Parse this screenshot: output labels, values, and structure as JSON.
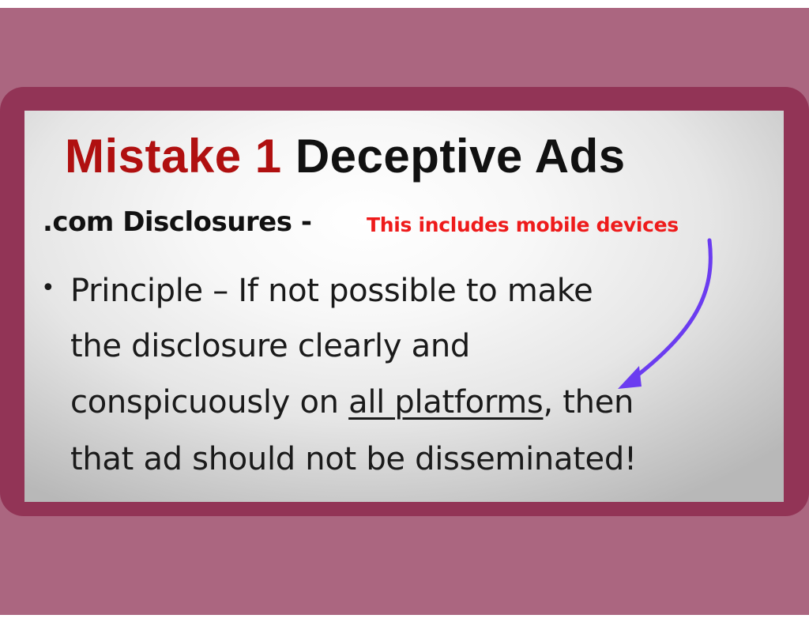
{
  "slide": {
    "title_red": "Mistake 1",
    "title_black": "Deceptive Ads",
    "subtitle": ".com Disclosures -",
    "annotation": "This includes mobile devices",
    "bullet_symbol": "•",
    "bullet_lines": {
      "line1": "Principle – If not possible to make",
      "line2": "the disclosure clearly and",
      "line3_before": "conspicuously on ",
      "line3_underlined": "all platforms",
      "line3_after": ", then",
      "line4": "that ad should not be disseminated!"
    }
  },
  "colors": {
    "background": "#ab6680",
    "frame": "#923456",
    "title_red": "#b01010",
    "annotation_red": "#ee1b1b",
    "arrow": "#6b3cf0"
  },
  "icons": {
    "arrow": "curved-arrow-icon"
  }
}
